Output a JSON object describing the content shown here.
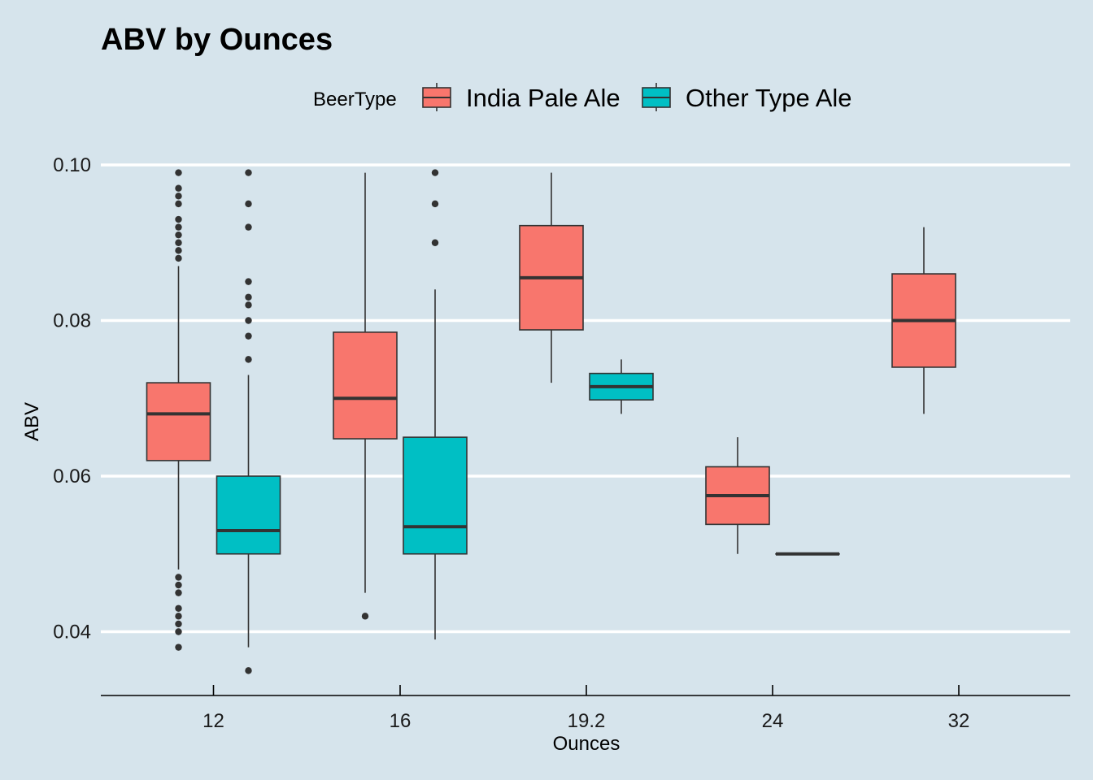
{
  "chart_data": {
    "type": "boxplot",
    "title": "ABV by Ounces",
    "xlabel": "Ounces",
    "ylabel": "ABV",
    "categories": [
      "12",
      "16",
      "19.2",
      "24",
      "32"
    ],
    "ylim": [
      0.032,
      0.1
    ],
    "yticks": [
      0.04,
      0.06,
      0.08,
      0.1
    ],
    "ytick_labels": [
      "0.04",
      "0.06",
      "0.08",
      "0.10"
    ],
    "grid": "horizontal major lines",
    "legend": {
      "title": "BeerType",
      "position": "top",
      "entries": [
        "India Pale Ale",
        "Other Type Ale"
      ]
    },
    "colors": {
      "background": "#d6e4ec",
      "grid": "#ffffff",
      "India Pale Ale": "#f8766d",
      "Other Type Ale": "#00bfc4",
      "outline": "#333333"
    },
    "series": [
      {
        "name": "India Pale Ale",
        "boxes": [
          {
            "category": "12",
            "q1": 0.062,
            "median": 0.068,
            "q3": 0.072,
            "lower_whisker": 0.048,
            "upper_whisker": 0.087,
            "outliers": [
              0.099,
              0.097,
              0.096,
              0.095,
              0.093,
              0.092,
              0.091,
              0.09,
              0.089,
              0.088,
              0.047,
              0.046,
              0.045,
              0.043,
              0.042,
              0.041,
              0.04,
              0.038
            ]
          },
          {
            "category": "16",
            "q1": 0.0648,
            "median": 0.07,
            "q3": 0.0785,
            "lower_whisker": 0.045,
            "upper_whisker": 0.099,
            "outliers": [
              0.042
            ]
          },
          {
            "category": "19.2",
            "q1": 0.0788,
            "median": 0.0855,
            "q3": 0.0922,
            "lower_whisker": 0.072,
            "upper_whisker": 0.099,
            "outliers": []
          },
          {
            "category": "24",
            "q1": 0.0538,
            "median": 0.0575,
            "q3": 0.0612,
            "lower_whisker": 0.05,
            "upper_whisker": 0.065,
            "outliers": []
          },
          {
            "category": "32",
            "q1": 0.074,
            "median": 0.08,
            "q3": 0.086,
            "lower_whisker": 0.068,
            "upper_whisker": 0.092,
            "outliers": []
          }
        ]
      },
      {
        "name": "Other Type Ale",
        "boxes": [
          {
            "category": "12",
            "q1": 0.05,
            "median": 0.053,
            "q3": 0.06,
            "lower_whisker": 0.038,
            "upper_whisker": 0.073,
            "outliers": [
              0.099,
              0.095,
              0.092,
              0.085,
              0.083,
              0.082,
              0.08,
              0.078,
              0.075,
              0.035
            ]
          },
          {
            "category": "16",
            "q1": 0.05,
            "median": 0.0535,
            "q3": 0.065,
            "lower_whisker": 0.039,
            "upper_whisker": 0.084,
            "outliers": [
              0.099,
              0.095,
              0.09
            ]
          },
          {
            "category": "19.2",
            "q1": 0.0698,
            "median": 0.0715,
            "q3": 0.0732,
            "lower_whisker": 0.068,
            "upper_whisker": 0.075,
            "outliers": []
          },
          {
            "category": "24",
            "q1": 0.05,
            "median": 0.05,
            "q3": 0.05,
            "lower_whisker": 0.05,
            "upper_whisker": 0.05,
            "outliers": []
          }
        ]
      }
    ]
  }
}
